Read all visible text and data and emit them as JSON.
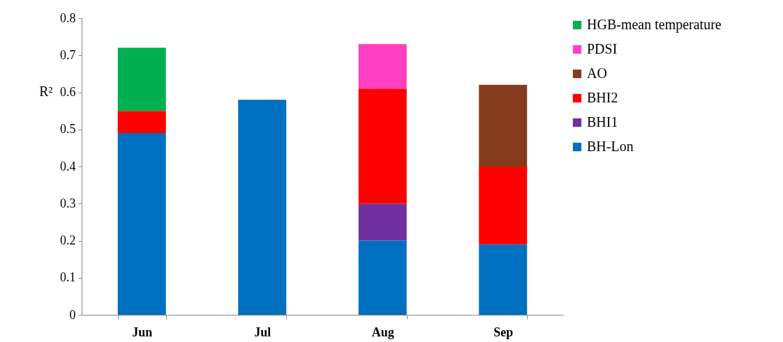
{
  "chart_data": {
    "type": "bar",
    "stacked": true,
    "ylabel": "R²",
    "categories": [
      "Jun",
      "Jul",
      "Aug",
      "Sep"
    ],
    "series": [
      {
        "name": "BH-Lon",
        "color": "#0070c0",
        "values": [
          0.49,
          0.58,
          0.2,
          0.19
        ]
      },
      {
        "name": "BHI1",
        "color": "#7030a0",
        "values": [
          null,
          null,
          0.1,
          null
        ]
      },
      {
        "name": "BHI2",
        "color": "#ff0000",
        "values": [
          0.06,
          null,
          0.31,
          0.21
        ]
      },
      {
        "name": "AO",
        "color": "#843c1c",
        "values": [
          null,
          null,
          null,
          0.22
        ]
      },
      {
        "name": "PDSI",
        "color": "#ff40c0",
        "values": [
          null,
          null,
          0.12,
          null
        ]
      },
      {
        "name": "HGB-mean temperature",
        "color": "#00b050",
        "values": [
          0.17,
          null,
          null,
          null
        ]
      }
    ],
    "ylim": [
      0,
      0.8
    ],
    "yticks": [
      0,
      0.1,
      0.2,
      0.3,
      0.4,
      0.5,
      0.6,
      0.7,
      0.8
    ],
    "grid": false,
    "legend": "right"
  }
}
